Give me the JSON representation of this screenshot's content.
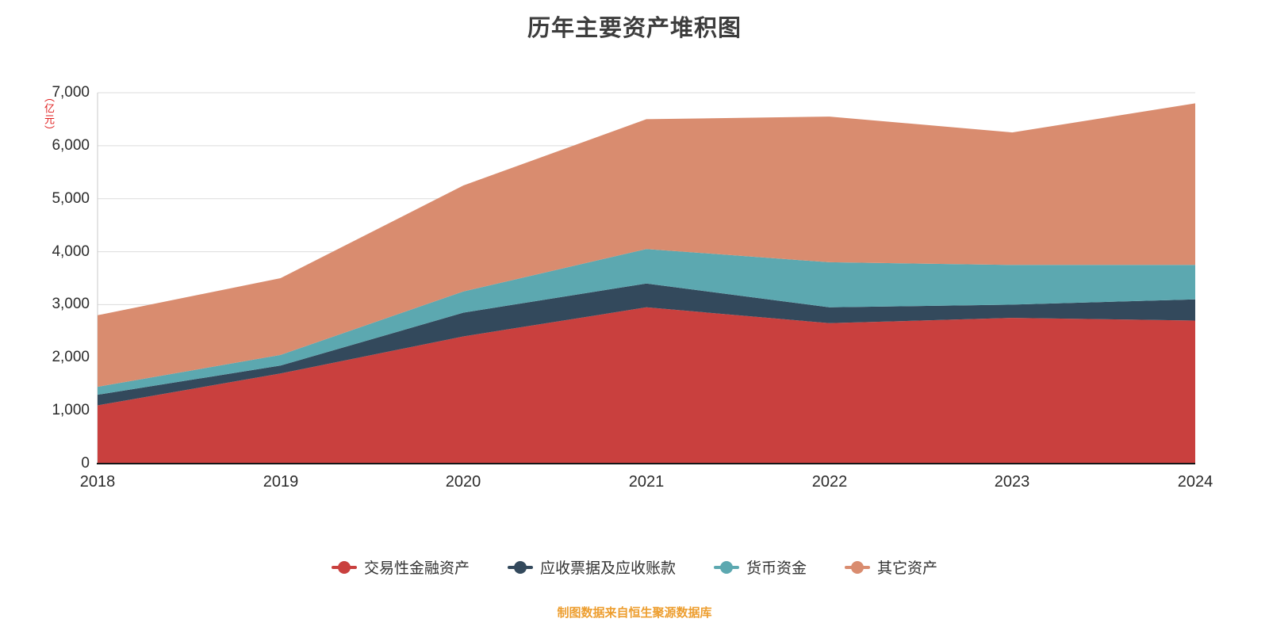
{
  "footer": {
    "source_text": "制图数据来自恒生聚源数据库",
    "color": "#ed9e2f"
  },
  "chart_data": {
    "type": "area",
    "stacked": true,
    "title": "历年主要资产堆积图",
    "unit_label": "（亿元）",
    "xlabel": "",
    "ylabel": "（亿元）",
    "categories": [
      "2018",
      "2019",
      "2020",
      "2021",
      "2022",
      "2023",
      "2024"
    ],
    "series": [
      {
        "name": "交易性金融资产",
        "color": "#c9403e",
        "values": [
          1100,
          1700,
          2400,
          2950,
          2650,
          2750,
          2700
        ]
      },
      {
        "name": "应收票据及应收账款",
        "color": "#33495c",
        "values": [
          200,
          150,
          450,
          450,
          300,
          250,
          400
        ]
      },
      {
        "name": "货币资金",
        "color": "#5ca8b0",
        "values": [
          150,
          200,
          400,
          650,
          850,
          750,
          650
        ]
      },
      {
        "name": "其它资产",
        "color": "#d98c6f",
        "values": [
          1350,
          1450,
          2000,
          2450,
          2750,
          2500,
          3050
        ]
      }
    ],
    "cumulative_totals": {
      "2018": 2800,
      "2019": 3500,
      "2020": 5250,
      "2021": 6500,
      "2022": 6550,
      "2023": 6250,
      "2024": 6800
    },
    "ylim": [
      0,
      7000
    ],
    "y_ticks": [
      0,
      1000,
      2000,
      3000,
      4000,
      5000,
      6000,
      7000
    ],
    "grid": true,
    "legend_position": "bottom"
  }
}
